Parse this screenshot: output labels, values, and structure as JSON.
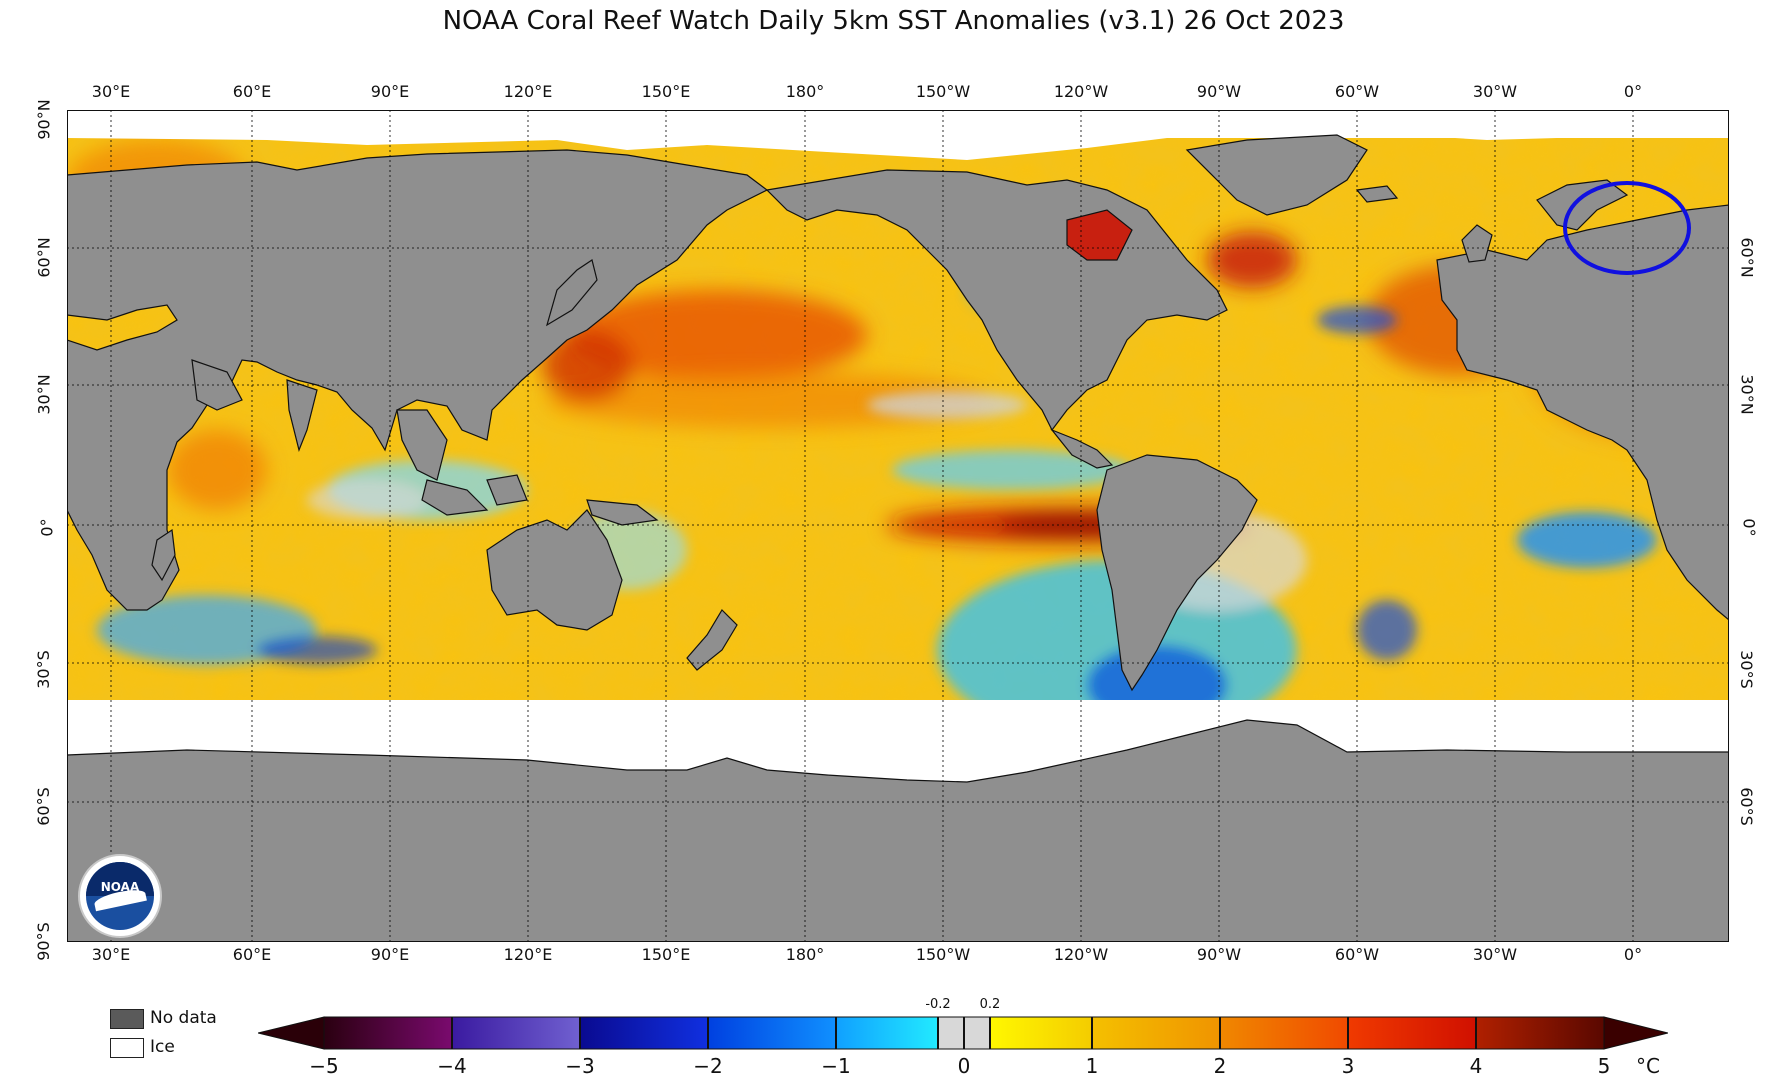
{
  "title": "NOAA Coral Reef Watch Daily 5km SST Anomalies  (v3.1)   26 Oct 2023",
  "lon_labels": [
    "30°E",
    "60°E",
    "90°E",
    "120°E",
    "150°E",
    "180°",
    "150°W",
    "120°W",
    "90°W",
    "60°W",
    "30°W",
    "0°"
  ],
  "lat_labels_left": [
    "90°N",
    "60°N",
    "30°N",
    "0°",
    "30°S",
    "60°S",
    "90°S"
  ],
  "lat_labels_right": [
    "60°N",
    "30°N",
    "0°",
    "30°S",
    "60°S"
  ],
  "legend": {
    "no_data_label": "No data",
    "ice_label": "Ice",
    "no_data_color": "#5a5a5a",
    "ice_color": "#ffffff"
  },
  "colorbar": {
    "ticks": [
      "−5",
      "−4",
      "−3",
      "−2",
      "−1",
      "0",
      "1",
      "2",
      "3",
      "4",
      "5"
    ],
    "small_ticks": [
      "-0.2",
      "0.2"
    ],
    "unit": "°C",
    "colors": {
      "m5": "#2a0010",
      "m4": "#6a0a6a",
      "m3": "#1a1aa0",
      "m2": "#0040e0",
      "m1": "#0099ff",
      "m0": "#22e6ff",
      "neutral": "#d8d8d8",
      "p0": "#fff200",
      "p1": "#f0b400",
      "p2": "#f77a00",
      "p3": "#e01800",
      "p4": "#8a1a08",
      "p5": "#3a0000"
    }
  },
  "map_colors": {
    "land": "#8f8f8f",
    "ocean_base": "#f4c21a",
    "ice": "#ffffff"
  },
  "logo_text": "NOAA",
  "highlight_circle_color": "#1010e0"
}
